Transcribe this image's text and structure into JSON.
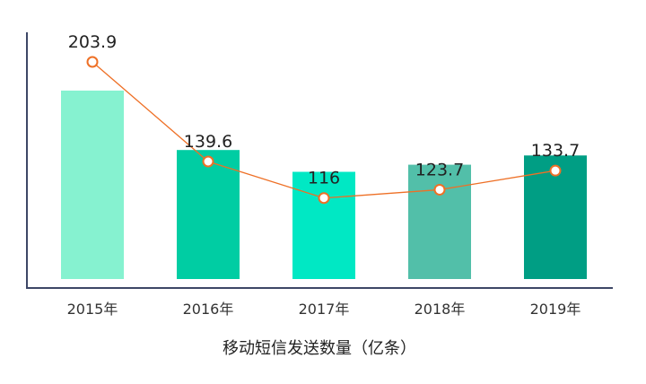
{
  "chart_data": {
    "type": "bar",
    "title": "",
    "xlabel": "移动短信发送数量（亿条）",
    "ylabel": "",
    "categories": [
      "2015年",
      "2016年",
      "2017年",
      "2018年",
      "2019年"
    ],
    "series": [
      {
        "type": "bar",
        "values": [
          203.9,
          139.6,
          116,
          123.7,
          133.7
        ],
        "colors": [
          "#86f2d0",
          "#00cda3",
          "#00e8c4",
          "#52bfa9",
          "#009e84"
        ]
      },
      {
        "type": "line",
        "values": [
          203.9,
          139.6,
          116,
          123.7,
          133.7
        ],
        "color": "#ee7026"
      }
    ],
    "data_labels": [
      "203.9",
      "139.6",
      "116",
      "123.7",
      "133.7"
    ],
    "grid": false,
    "legend": "none",
    "axis_color": "#3d4766"
  }
}
